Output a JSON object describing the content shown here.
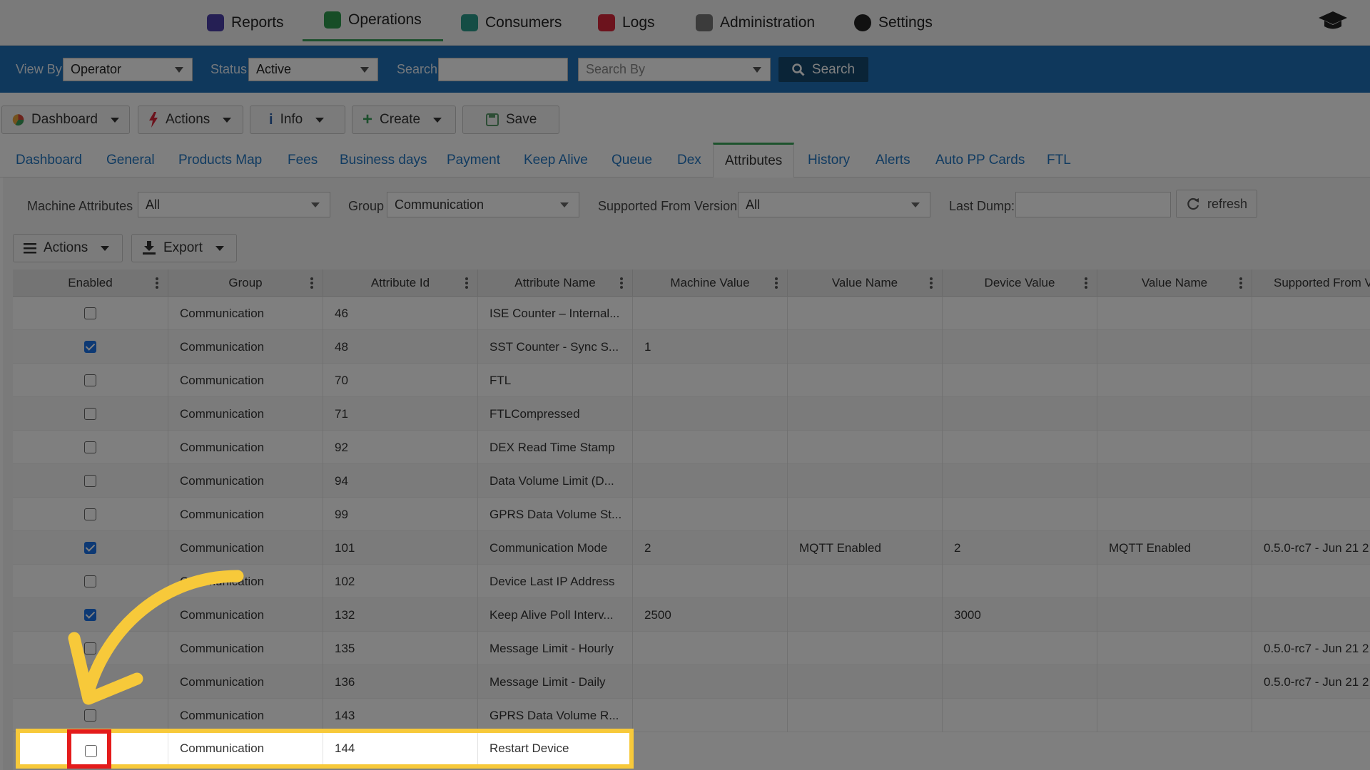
{
  "topnav": {
    "items": [
      {
        "label": "Reports",
        "icon": "reports-icon",
        "color": "#4b3fa8"
      },
      {
        "label": "Operations",
        "icon": "operations-icon",
        "color": "#2e9a4f",
        "active": true
      },
      {
        "label": "Consumers",
        "icon": "consumers-icon",
        "color": "#2a9a8a"
      },
      {
        "label": "Logs",
        "icon": "logs-icon",
        "color": "#d9263b"
      },
      {
        "label": "Administration",
        "icon": "administration-icon",
        "color": "#777777"
      },
      {
        "label": "Settings",
        "icon": "settings-icon",
        "color": "#222222"
      }
    ]
  },
  "searchbar": {
    "view_by_label": "View By",
    "view_by_value": "Operator",
    "status_label": "Status",
    "status_value": "Active",
    "search_label": "Search",
    "search_value": "",
    "search_by_placeholder": "Search By",
    "search_button": "Search"
  },
  "toolbar": {
    "dashboard": "Dashboard",
    "actions": "Actions",
    "info": "Info",
    "create": "Create",
    "save": "Save"
  },
  "tabs": [
    "Dashboard",
    "General",
    "Products Map",
    "Fees",
    "Business days",
    "Payment",
    "Keep Alive",
    "Queue",
    "Dex",
    "Attributes",
    "History",
    "Alerts",
    "Auto PP Cards",
    "FTL"
  ],
  "active_tab": "Attributes",
  "filters": {
    "machine_attributes_label": "Machine Attributes",
    "machine_attributes_value": "All",
    "group_label": "Group",
    "group_value": "Communication",
    "supported_label": "Supported From Version",
    "supported_value": "All",
    "last_dump_label": "Last Dump:",
    "last_dump_value": "",
    "refresh": "refresh"
  },
  "grid_toolbar": {
    "actions": "Actions",
    "export": "Export"
  },
  "grid": {
    "columns": [
      "Enabled",
      "Group",
      "Attribute Id",
      "Attribute Name",
      "Machine Value",
      "Value Name",
      "Device Value",
      "Value Name",
      "Supported From Ve"
    ],
    "rows": [
      {
        "enabled": false,
        "group": "Communication",
        "id": "46",
        "name": "ISE Counter – Internal...",
        "mvalue": "",
        "vname": "",
        "dvalue": "",
        "vname2": "",
        "supported": ""
      },
      {
        "enabled": true,
        "group": "Communication",
        "id": "48",
        "name": "SST Counter - Sync S...",
        "mvalue": "1",
        "vname": "",
        "dvalue": "",
        "vname2": "",
        "supported": ""
      },
      {
        "enabled": false,
        "group": "Communication",
        "id": "70",
        "name": "FTL",
        "mvalue": "",
        "vname": "",
        "dvalue": "",
        "vname2": "",
        "supported": ""
      },
      {
        "enabled": false,
        "group": "Communication",
        "id": "71",
        "name": "FTLCompressed",
        "mvalue": "",
        "vname": "",
        "dvalue": "",
        "vname2": "",
        "supported": ""
      },
      {
        "enabled": false,
        "group": "Communication",
        "id": "92",
        "name": "DEX Read Time Stamp",
        "mvalue": "",
        "vname": "",
        "dvalue": "",
        "vname2": "",
        "supported": ""
      },
      {
        "enabled": false,
        "group": "Communication",
        "id": "94",
        "name": "Data Volume Limit (D...",
        "mvalue": "",
        "vname": "",
        "dvalue": "",
        "vname2": "",
        "supported": ""
      },
      {
        "enabled": false,
        "group": "Communication",
        "id": "99",
        "name": "GPRS Data Volume St...",
        "mvalue": "",
        "vname": "",
        "dvalue": "",
        "vname2": "",
        "supported": ""
      },
      {
        "enabled": true,
        "group": "Communication",
        "id": "101",
        "name": "Communication Mode",
        "mvalue": "2",
        "vname": "MQTT Enabled",
        "dvalue": "2",
        "vname2": "MQTT Enabled",
        "supported": "0.5.0-rc7 - Jun 21 2"
      },
      {
        "enabled": false,
        "group": "Communication",
        "id": "102",
        "name": "Device Last IP Address",
        "mvalue": "",
        "vname": "",
        "dvalue": "",
        "vname2": "",
        "supported": ""
      },
      {
        "enabled": true,
        "group": "Communication",
        "id": "132",
        "name": "Keep Alive Poll Interv...",
        "mvalue": "2500",
        "vname": "",
        "dvalue": "3000",
        "vname2": "",
        "supported": ""
      },
      {
        "enabled": false,
        "group": "Communication",
        "id": "135",
        "name": "Message Limit - Hourly",
        "mvalue": "",
        "vname": "",
        "dvalue": "",
        "vname2": "",
        "supported": "0.5.0-rc7 - Jun 21 2"
      },
      {
        "enabled": false,
        "group": "Communication",
        "id": "136",
        "name": "Message Limit - Daily",
        "mvalue": "",
        "vname": "",
        "dvalue": "",
        "vname2": "",
        "supported": "0.5.0-rc7 - Jun 21 2"
      },
      {
        "enabled": false,
        "group": "Communication",
        "id": "143",
        "name": "GPRS Data Volume R...",
        "mvalue": "",
        "vname": "",
        "dvalue": "",
        "vname2": "",
        "supported": ""
      }
    ],
    "highlighted_row": {
      "enabled": false,
      "group": "Communication",
      "id": "144",
      "name": "Restart Device"
    }
  },
  "colors": {
    "search_bar": "#1e70b8",
    "highlight_border": "#f7c93a",
    "checkbox_highlight": "#e41b1b",
    "arrow": "#f7c93a",
    "checked": "#1a73e8"
  }
}
